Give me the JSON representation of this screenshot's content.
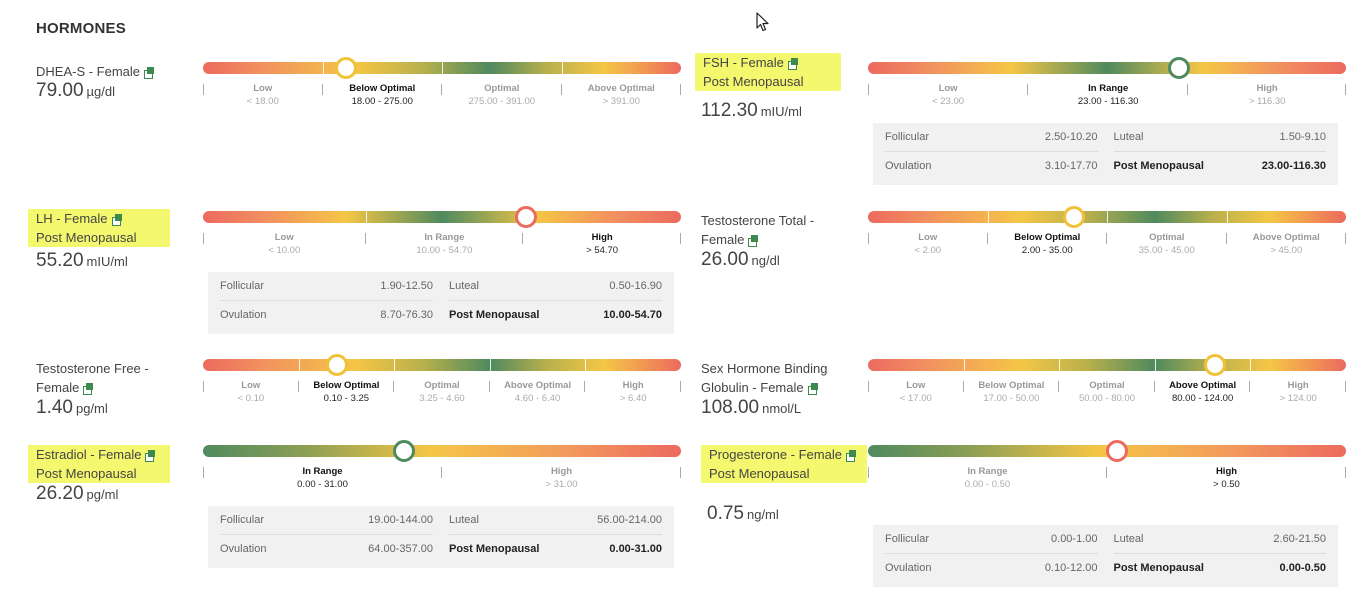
{
  "section_title": "HORMONES",
  "markers": [
    {
      "name": "DHEA-S - Female",
      "value": "79.00",
      "unit": "µg/dl",
      "position_fraction": 0.3,
      "status": "Below Optimal",
      "marker_color": "#f2c13a",
      "zones": [
        {
          "name": "Low",
          "range": "< 18.00"
        },
        {
          "name": "Below Optimal",
          "range": "18.00 - 275.00",
          "active": true
        },
        {
          "name": "Optimal",
          "range": "275.00 - 391.00"
        },
        {
          "name": "Above Optimal",
          "range": "> 391.00"
        }
      ]
    },
    {
      "name": "FSH - Female",
      "subtitle": "Post Menopausal",
      "value": "112.30",
      "unit": "mIU/ml",
      "position_fraction": 0.65,
      "status": "In Range",
      "marker_color": "#4f8a5e",
      "zones": [
        {
          "name": "Low",
          "range": "< 23.00"
        },
        {
          "name": "In Range",
          "range": "23.00 - 116.30",
          "active": true
        },
        {
          "name": "High",
          "range": "> 116.30"
        }
      ],
      "reference": [
        {
          "name": "Follicular",
          "range": "2.50-10.20"
        },
        {
          "name": "Luteal",
          "range": "1.50-9.10"
        },
        {
          "name": "Ovulation",
          "range": "3.10-17.70"
        },
        {
          "name": "Post Menopausal",
          "range": "23.00-116.30",
          "active": true
        }
      ]
    },
    {
      "name": "LH - Female",
      "subtitle": "Post Menopausal",
      "value": "55.20",
      "unit": "mIU/ml",
      "position_fraction": 0.675,
      "status": "High",
      "marker_color": "#ec6a5e",
      "zones": [
        {
          "name": "Low",
          "range": "< 10.00"
        },
        {
          "name": "In Range",
          "range": "10.00 - 54.70"
        },
        {
          "name": "High",
          "range": "> 54.70",
          "active": true
        }
      ],
      "reference": [
        {
          "name": "Follicular",
          "range": "1.90-12.50"
        },
        {
          "name": "Luteal",
          "range": "0.50-16.90"
        },
        {
          "name": "Ovulation",
          "range": "8.70-76.30"
        },
        {
          "name": "Post Menopausal",
          "range": "10.00-54.70",
          "active": true
        }
      ]
    },
    {
      "name": "Testosterone Total - Female",
      "value": "26.00",
      "unit": "ng/dl",
      "position_fraction": 0.43,
      "status": "Below Optimal",
      "marker_color": "#f2c13a",
      "zones": [
        {
          "name": "Low",
          "range": "< 2.00"
        },
        {
          "name": "Below Optimal",
          "range": "2.00 - 35.00",
          "active": true
        },
        {
          "name": "Optimal",
          "range": "35.00 - 45.00"
        },
        {
          "name": "Above Optimal",
          "range": "> 45.00"
        }
      ]
    },
    {
      "name": "Testosterone Free - Female",
      "value": "1.40",
      "unit": "pg/ml",
      "position_fraction": 0.28,
      "status": "Below Optimal",
      "marker_color": "#f2c13a",
      "zones": [
        {
          "name": "Low",
          "range": "< 0.10"
        },
        {
          "name": "Below Optimal",
          "range": "0.10 - 3.25",
          "active": true
        },
        {
          "name": "Optimal",
          "range": "3.25 - 4.60"
        },
        {
          "name": "Above Optimal",
          "range": "4.60 - 6.40"
        },
        {
          "name": "High",
          "range": "> 6.40"
        }
      ]
    },
    {
      "name": "Sex Hormone Binding Globulin - Female",
      "value": "108.00",
      "unit": "nmol/L",
      "position_fraction": 0.725,
      "status": "Above Optimal",
      "marker_color": "#f2c13a",
      "zones": [
        {
          "name": "Low",
          "range": "< 17.00"
        },
        {
          "name": "Below Optimal",
          "range": "17.00 - 50.00"
        },
        {
          "name": "Optimal",
          "range": "50.00 - 80.00"
        },
        {
          "name": "Above Optimal",
          "range": "80.00 - 124.00",
          "active": true
        },
        {
          "name": "High",
          "range": "> 124.00"
        }
      ]
    },
    {
      "name": "Estradiol - Female",
      "subtitle": "Post Menopausal",
      "value": "26.20",
      "unit": "pg/ml",
      "position_fraction": 0.42,
      "status": "In Range",
      "marker_color": "#4f8a5e",
      "zones": [
        {
          "name": "In Range",
          "range": "0.00 - 31.00",
          "active": true
        },
        {
          "name": "High",
          "range": "> 31.00"
        }
      ],
      "reference": [
        {
          "name": "Follicular",
          "range": "19.00-144.00"
        },
        {
          "name": "Luteal",
          "range": "56.00-214.00"
        },
        {
          "name": "Ovulation",
          "range": "64.00-357.00"
        },
        {
          "name": "Post Menopausal",
          "range": "0.00-31.00",
          "active": true
        }
      ]
    },
    {
      "name": "Progesterone - Female",
      "subtitle": "Post Menopausal",
      "value": "0.75",
      "unit": "ng/ml",
      "position_fraction": 0.52,
      "status": "High",
      "marker_color": "#ec6a5e",
      "zones": [
        {
          "name": "In Range",
          "range": "0.00 - 0.50"
        },
        {
          "name": "High",
          "range": "> 0.50",
          "active": true
        }
      ],
      "reference": [
        {
          "name": "Follicular",
          "range": "0.00-1.00"
        },
        {
          "name": "Luteal",
          "range": "2.60-21.50"
        },
        {
          "name": "Ovulation",
          "range": "0.10-12.00"
        },
        {
          "name": "Post Menopausal",
          "range": "0.00-0.50",
          "active": true
        }
      ]
    }
  ]
}
